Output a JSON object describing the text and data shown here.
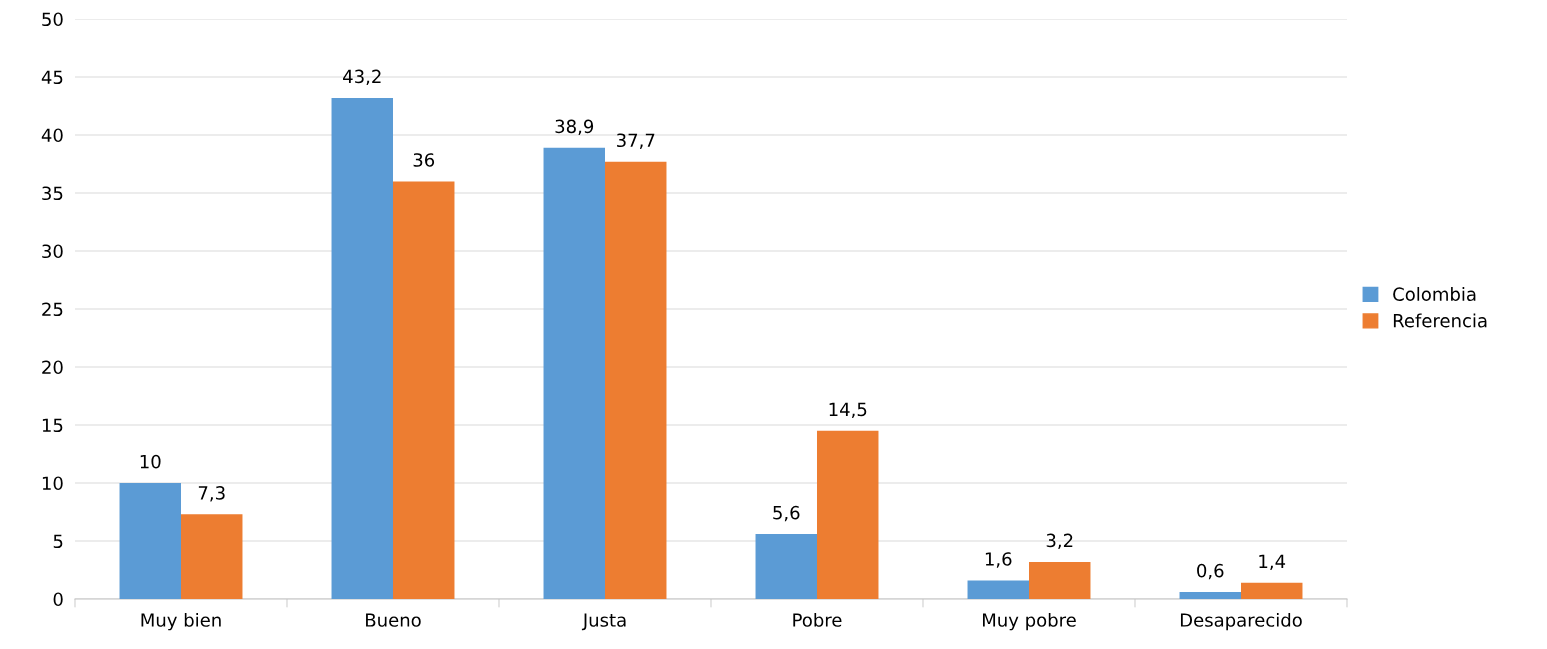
{
  "chart_data": {
    "type": "bar",
    "categories": [
      "Muy bien",
      "Bueno",
      "Justa",
      "Pobre",
      "Muy pobre",
      "Desaparecido"
    ],
    "series": [
      {
        "name": "Colombia",
        "color": "#5b9bd5",
        "values": [
          10,
          43.2,
          38.9,
          5.6,
          1.6,
          0.6
        ],
        "value_labels": [
          "10",
          "43,2",
          "38,9",
          "5,6",
          "1,6",
          "0,6"
        ]
      },
      {
        "name": "Referencia",
        "color": "#ed7d31",
        "values": [
          7.3,
          36,
          37.7,
          14.5,
          3.2,
          1.4
        ],
        "value_labels": [
          "7,3",
          "36",
          "37,7",
          "14,5",
          "3,2",
          "1,4"
        ]
      }
    ],
    "ylim": [
      0,
      50
    ],
    "yticks": [
      0,
      5,
      10,
      15,
      20,
      25,
      30,
      35,
      40,
      45,
      50
    ],
    "grid": "y",
    "legend": "right"
  }
}
